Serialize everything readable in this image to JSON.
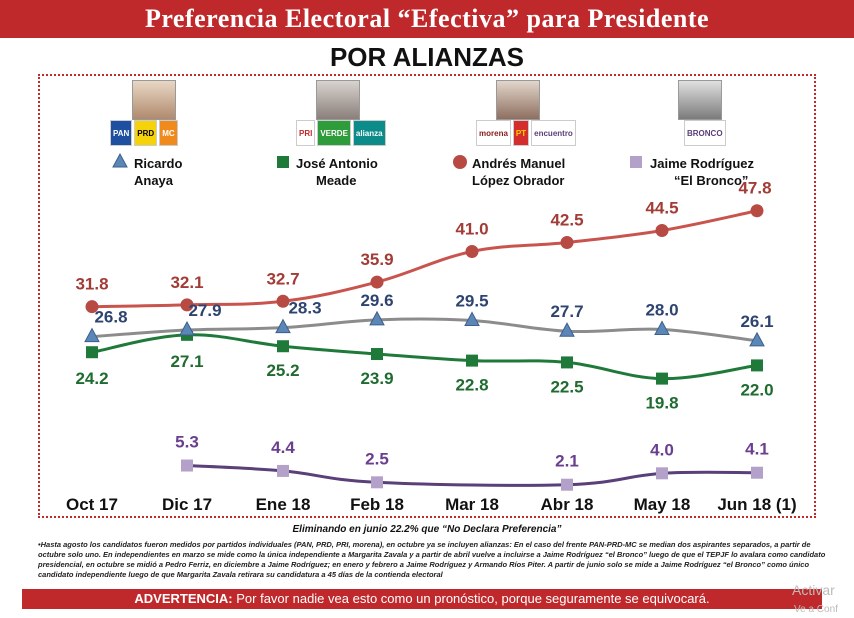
{
  "header": {
    "title": "Preferencia Electoral “Efectiva” para Presidente",
    "subtitle": "POR ALIANZAS"
  },
  "chart_data": {
    "type": "line",
    "categories": [
      "Oct 17",
      "Dic 17",
      "Ene 18",
      "Feb 18",
      "Mar 18",
      "Abr 18",
      "May 18",
      "Jun 18 (1)"
    ],
    "ylim": [
      0,
      50
    ],
    "grid": false,
    "legend_position": "top",
    "series": [
      {
        "name": "Ricardo Anaya",
        "name_lines": [
          "Ricardo",
          "Anaya"
        ],
        "color": "#8c8c8c",
        "marker_color": "#5b86b8",
        "marker": "triangle",
        "label_color": "#2e4470",
        "values": [
          26.8,
          27.9,
          28.3,
          29.6,
          29.5,
          27.7,
          28.0,
          26.1
        ]
      },
      {
        "name": "José Antonio Meade",
        "name_lines": [
          "José Antonio",
          "Meade"
        ],
        "color": "#1f7a3a",
        "marker_color": "#1f7a3a",
        "marker": "square",
        "label_color": "#1f6b30",
        "values": [
          24.2,
          27.1,
          25.2,
          23.9,
          22.8,
          22.5,
          19.8,
          22.0
        ]
      },
      {
        "name": "Andrés Manuel López Obrador",
        "name_lines": [
          "Andrés Manuel",
          "López Obrador"
        ],
        "color": "#c9544e",
        "marker_color": "#b84a44",
        "marker": "circle",
        "label_color": "#a23c36",
        "values": [
          31.8,
          32.1,
          32.7,
          35.9,
          41.0,
          42.5,
          44.5,
          47.8
        ]
      },
      {
        "name": "Jaime Rodríguez “El Bronco”",
        "name_lines": [
          "Jaime Rodríguez",
          "“El Bronco”"
        ],
        "color": "#5a3f78",
        "marker_color": "#b3a1c9",
        "marker": "square",
        "label_color": "#6a3f8f",
        "values": [
          null,
          5.3,
          4.4,
          2.5,
          null,
          2.1,
          4.0,
          4.1
        ]
      }
    ]
  },
  "legend_logos": {
    "anaya": [
      "PAN",
      "PRD",
      "MC"
    ],
    "meade": [
      "PRI",
      "VERDE",
      "alianza"
    ],
    "amlo": [
      "morena",
      "PT",
      "encuentro"
    ],
    "bronco": [
      "BRONCO"
    ]
  },
  "footnote": {
    "title": "Eliminando en junio 22.2% que “No Declara Preferencia”",
    "text": "•Hasta agosto los candidatos fueron medidos por partidos individuales (PAN, PRD, PRI, morena), en octubre ya se incluyen alianzas: En el caso del frente PAN-PRD-MC se median dos aspirantes separados, a partir de octubre solo uno. En independientes en marzo se mide como la única independiente a Margarita Zavala y a partir de abril vuelve a incluirse a Jaime Rodríguez “el Bronco” luego de que el TEPJF lo avalara como candidato presidencial, en octubre se midió a Pedro Ferriz, en diciembre a Jaime Rodríguez; en enero y febrero a Jaime Rodríguez y Armando Ríos Piter. A partir de junio solo se mide a Jaime Rodríguez “el Bronco” como único candidato independiente luego de que Margarita Zavala retirara su candidatura a 45 días de la contienda electoral"
  },
  "warning": {
    "label": "ADVERTENCIA:",
    "text": " Por favor nadie vea esto como un pronóstico, porque seguramente se equivocará."
  },
  "watermark": {
    "line1": "Activar",
    "line2": "Ve a Conf"
  }
}
